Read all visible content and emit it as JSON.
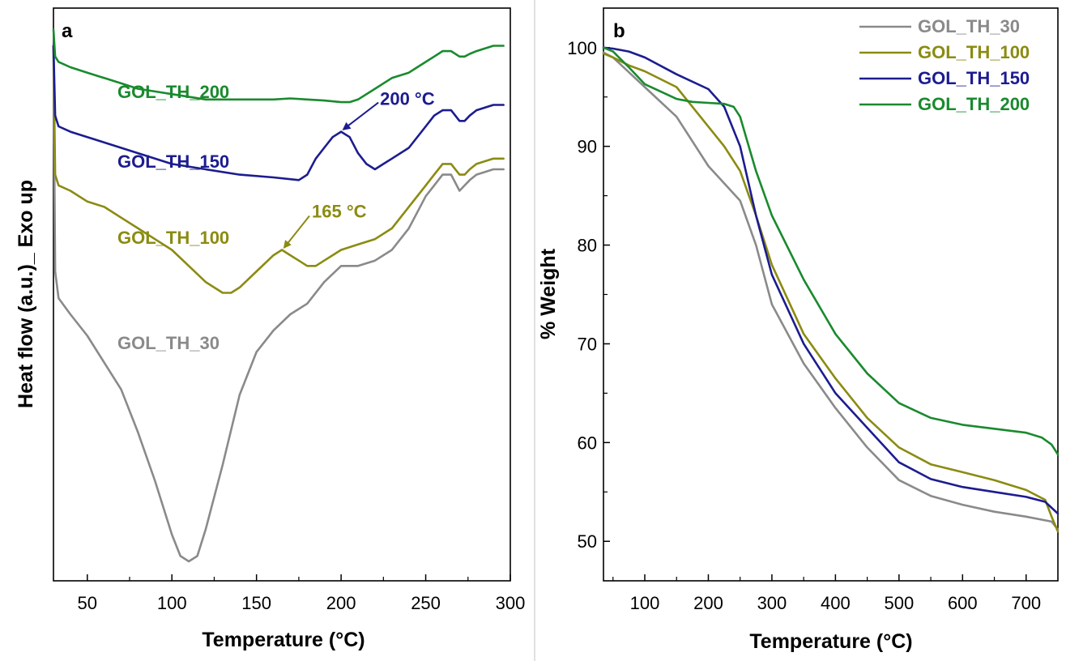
{
  "panels": [
    {
      "panel_label": "a",
      "ylabel": "Heat flow (a.u.)_ Exo up",
      "xlabel": "Temperature (°C)"
    },
    {
      "panel_label": "b",
      "ylabel": "% Weight",
      "xlabel": "Temperature (°C)"
    }
  ],
  "chart_data": [
    {
      "type": "line",
      "panel": "a",
      "title": "",
      "xlabel": "Temperature (°C)",
      "ylabel": "Heat flow (a.u.)_ Exo up",
      "xlim": [
        30,
        300
      ],
      "ylim": [
        0,
        100
      ],
      "xticks": [
        50,
        100,
        150,
        200,
        250,
        300
      ],
      "yticks": [],
      "series": [
        {
          "name": "GOL_TH_30",
          "color": "#8a8a8a",
          "x": [
            30,
            31,
            33,
            40,
            50,
            60,
            70,
            80,
            90,
            100,
            105,
            110,
            115,
            120,
            130,
            140,
            150,
            160,
            170,
            180,
            190,
            200,
            210,
            220,
            230,
            240,
            250,
            255,
            260,
            265,
            270,
            273,
            276,
            280,
            290,
            296
          ],
          "y": [
            96,
            54,
            49,
            46,
            42,
            37,
            32,
            24,
            15,
            5,
            1,
            0,
            1,
            6,
            18,
            31,
            39,
            43,
            46,
            48,
            52,
            55,
            55,
            56,
            58,
            62,
            68,
            70,
            72,
            72,
            69,
            70,
            71,
            72,
            73,
            73
          ]
        },
        {
          "name": "GOL_TH_100",
          "color": "#8b8b12",
          "x": [
            30,
            31,
            33,
            40,
            50,
            60,
            70,
            80,
            90,
            100,
            110,
            120,
            130,
            135,
            140,
            150,
            160,
            165,
            170,
            175,
            180,
            185,
            190,
            200,
            210,
            220,
            230,
            240,
            250,
            255,
            260,
            265,
            270,
            273,
            276,
            280,
            290,
            296
          ],
          "y": [
            96,
            72,
            70,
            69,
            67,
            66,
            64,
            62,
            60,
            58,
            55,
            52,
            50,
            50,
            51,
            54,
            57,
            58,
            57,
            56,
            55,
            55,
            56,
            58,
            59,
            60,
            62,
            66,
            70,
            72,
            74,
            74,
            72,
            72,
            73,
            74,
            75,
            75
          ]
        },
        {
          "name": "GOL_TH_150",
          "color": "#1c1c90",
          "x": [
            30,
            31,
            33,
            40,
            50,
            60,
            70,
            80,
            90,
            100,
            120,
            140,
            160,
            175,
            180,
            185,
            190,
            195,
            200,
            205,
            210,
            215,
            220,
            225,
            230,
            240,
            250,
            255,
            260,
            265,
            270,
            273,
            276,
            280,
            290,
            296
          ],
          "y": [
            96,
            83,
            81,
            80,
            79,
            78,
            77,
            76,
            75,
            74,
            73,
            72,
            71.5,
            71,
            72,
            75,
            77,
            79,
            80,
            79,
            76,
            74,
            73,
            74,
            75,
            77,
            81,
            83,
            84,
            84,
            82,
            82,
            83,
            84,
            85,
            85
          ]
        },
        {
          "name": "GOL_TH_200",
          "color": "#1a8a2e",
          "x": [
            30,
            31,
            33,
            40,
            50,
            60,
            70,
            80,
            90,
            100,
            120,
            140,
            160,
            170,
            180,
            190,
            200,
            205,
            210,
            220,
            230,
            240,
            250,
            255,
            260,
            265,
            270,
            273,
            276,
            280,
            290,
            296
          ],
          "y": [
            99,
            94,
            93,
            92,
            91,
            90,
            89,
            88,
            87.5,
            87,
            86,
            86,
            86,
            86.2,
            86,
            85.8,
            85.5,
            85.5,
            86,
            88,
            90,
            91,
            93,
            94,
            95,
            95,
            94,
            94,
            94.5,
            95,
            96,
            96
          ]
        }
      ],
      "annotations": [
        {
          "text": "200 °C",
          "x": 200,
          "y": 80,
          "color": "#1c1c90"
        },
        {
          "text": "165 °C",
          "x": 165,
          "y": 58,
          "color": "#8b8b12"
        }
      ]
    },
    {
      "type": "line",
      "panel": "b",
      "title": "",
      "xlabel": "Temperature (°C)",
      "ylabel": "% Weight",
      "xlim": [
        35,
        750
      ],
      "ylim": [
        46,
        104
      ],
      "xticks": [
        100,
        200,
        300,
        400,
        500,
        600,
        700
      ],
      "yticks": [
        50,
        60,
        70,
        80,
        90,
        100
      ],
      "legend": "top-right",
      "series": [
        {
          "name": "GOL_TH_30",
          "color": "#8a8a8a",
          "x": [
            35,
            50,
            75,
            100,
            150,
            200,
            250,
            275,
            300,
            350,
            400,
            450,
            500,
            550,
            600,
            650,
            700,
            740,
            750
          ],
          "y": [
            99.5,
            99.0,
            97.5,
            96.0,
            93.0,
            88.0,
            84.5,
            80.0,
            74.0,
            68.0,
            63.5,
            59.5,
            56.2,
            54.6,
            53.7,
            53.0,
            52.5,
            52.0,
            51.2
          ]
        },
        {
          "name": "GOL_TH_100",
          "color": "#8b8b12",
          "x": [
            35,
            50,
            75,
            100,
            150,
            200,
            225,
            250,
            275,
            300,
            350,
            400,
            450,
            500,
            550,
            600,
            650,
            700,
            730,
            740,
            750
          ],
          "y": [
            99.4,
            99.0,
            98.2,
            97.6,
            96.0,
            92.0,
            90.0,
            87.5,
            83.0,
            78.0,
            71.0,
            66.5,
            62.5,
            59.5,
            57.8,
            57.0,
            56.2,
            55.2,
            54.2,
            52.5,
            51.0
          ]
        },
        {
          "name": "GOL_TH_150",
          "color": "#1c1c90",
          "x": [
            35,
            50,
            75,
            100,
            150,
            200,
            225,
            250,
            275,
            300,
            350,
            400,
            450,
            500,
            550,
            600,
            650,
            700,
            730,
            750
          ],
          "y": [
            100.0,
            99.9,
            99.6,
            99.0,
            97.3,
            95.8,
            94.0,
            90.0,
            83.0,
            77.0,
            70.0,
            65.0,
            61.5,
            58.0,
            56.3,
            55.5,
            55.0,
            54.5,
            54.0,
            52.8
          ]
        },
        {
          "name": "GOL_TH_200",
          "color": "#1a8a2e",
          "x": [
            35,
            50,
            75,
            100,
            150,
            175,
            200,
            225,
            240,
            250,
            260,
            275,
            300,
            350,
            400,
            450,
            500,
            550,
            600,
            650,
            700,
            725,
            740,
            750
          ],
          "y": [
            100.0,
            99.6,
            98.0,
            96.3,
            94.8,
            94.5,
            94.4,
            94.3,
            94.0,
            93.0,
            90.8,
            87.5,
            83.0,
            76.5,
            71.0,
            67.0,
            64.0,
            62.5,
            61.8,
            61.4,
            61.0,
            60.5,
            59.8,
            58.8
          ]
        }
      ]
    }
  ]
}
